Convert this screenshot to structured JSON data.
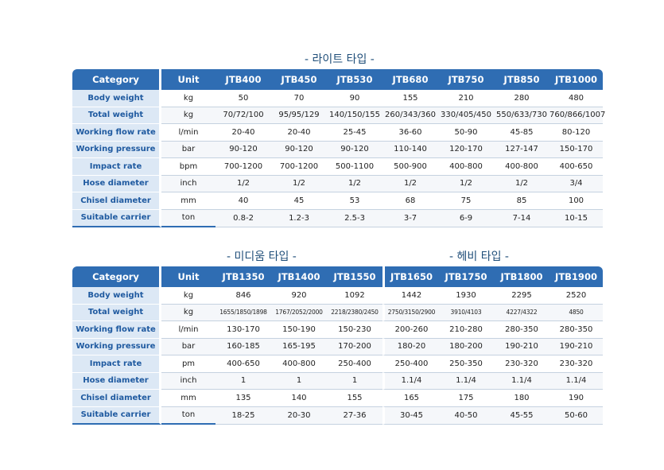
{
  "light": {
    "title": "- 라이트 타입 -",
    "headers": [
      "Category",
      "Unit",
      "JTB400",
      "JTB450",
      "JTB530",
      "JTB680",
      "JTB750",
      "JTB850",
      "JTB1000"
    ],
    "rows": [
      [
        "Body weight",
        "kg",
        "50",
        "70",
        "90",
        "155",
        "210",
        "280",
        "480"
      ],
      [
        "Total weight",
        "kg",
        "70/72/100",
        "95/95/129",
        "140/150/155",
        "260/343/360",
        "330/405/450",
        "550/633/730",
        "760/866/1007"
      ],
      [
        "Working flow rate",
        "l/min",
        "20-40",
        "20-40",
        "25-45",
        "36-60",
        "50-90",
        "45-85",
        "80-120"
      ],
      [
        "Working pressure",
        "bar",
        "90-120",
        "90-120",
        "90-120",
        "110-140",
        "120-170",
        "127-147",
        "150-170"
      ],
      [
        "Impact rate",
        "bpm",
        "700-1200",
        "700-1200",
        "500-1100",
        "500-900",
        "400-800",
        "400-800",
        "400-650"
      ],
      [
        "Hose diameter",
        "inch",
        "1/2",
        "1/2",
        "1/2",
        "1/2",
        "1/2",
        "1/2",
        "3/4"
      ],
      [
        "Chisel diameter",
        "mm",
        "40",
        "45",
        "53",
        "68",
        "75",
        "85",
        "100"
      ],
      [
        "Suitable carrier",
        "ton",
        "0.8-2",
        "1.2-3",
        "2.5-3",
        "3-7",
        "6-9",
        "7-14",
        "10-15"
      ]
    ]
  },
  "medium": {
    "title": "- 미디움 타입 -"
  },
  "heavy": {
    "title": "- 헤비 타입 -",
    "headers": [
      "Category",
      "Unit",
      "JTB1350",
      "JTB1400",
      "JTB1550",
      "JTB1650",
      "JTB1750",
      "JTB1800",
      "JTB1900"
    ],
    "rows": [
      [
        "Body weight",
        "kg",
        "846",
        "920",
        "1092",
        "1442",
        "1930",
        "2295",
        "2520"
      ],
      [
        "Total weight",
        "kg",
        "1655/1850/1898",
        "1767/2052/2000",
        "2218/2380/2450",
        "2750/3150/2900",
        "3910/4103",
        "4227/4322",
        "4850"
      ],
      [
        "Working flow rate",
        "l/min",
        "130-170",
        "150-190",
        "150-230",
        "200-260",
        "210-280",
        "280-350",
        "280-350"
      ],
      [
        "Working pressure",
        "bar",
        "160-185",
        "165-195",
        "170-200",
        "180-20",
        "180-200",
        "190-210",
        "190-210"
      ],
      [
        "Impact rate",
        "pm",
        "400-650",
        "400-800",
        "250-400",
        "250-400",
        "250-350",
        "230-320",
        "230-320"
      ],
      [
        "Hose diameter",
        "inch",
        "1",
        "1",
        "1",
        "1.1/4",
        "1.1/4",
        "1.1/4",
        "1.1/4"
      ],
      [
        "Chisel diameter",
        "mm",
        "135",
        "140",
        "155",
        "165",
        "175",
        "180",
        "190"
      ],
      [
        "Suitable carrier",
        "ton",
        "18-25",
        "20-30",
        "27-36",
        "30-45",
        "40-50",
        "45-55",
        "50-60"
      ]
    ]
  }
}
